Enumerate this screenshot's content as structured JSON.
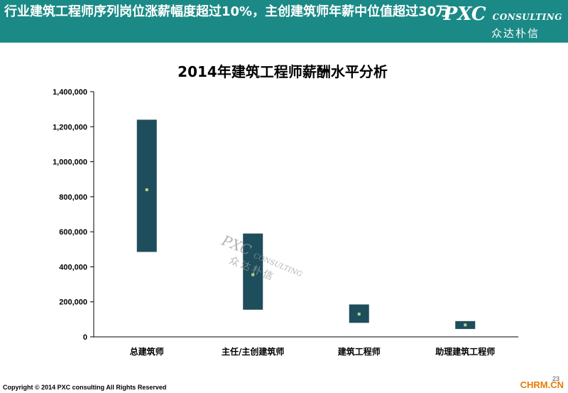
{
  "header": {
    "title": "行业建筑工程师序列岗位涨薪幅度超过10%，主创建筑师年薪中位值超过30万",
    "logo_main": "PXC",
    "logo_sub": "CONSULTING",
    "logo_cn": "众达朴信"
  },
  "watermark": {
    "main": "PXC",
    "sub": "CONSULTING",
    "cn": "众达朴信"
  },
  "footer": {
    "copyright": "Copyright © 2014  PXC consulting All Rights Reserved",
    "site": "CHRM.CN",
    "page": "23"
  },
  "colors": {
    "banner": "#1b8a86",
    "bar": "#1e4d5c",
    "median": "#b5d38a",
    "site": "#e87c00"
  },
  "chart_data": {
    "type": "range-bar",
    "title": "2014年建筑工程师薪酬水平分析",
    "xlabel": "",
    "ylabel": "",
    "ylim": [
      0,
      1400000
    ],
    "yticks": [
      0,
      200000,
      400000,
      600000,
      800000,
      1000000,
      1200000,
      1400000
    ],
    "ytick_labels": [
      "0",
      "200,000",
      "400,000",
      "600,000",
      "800,000",
      "1,000,000",
      "1,200,000",
      "1,400,000"
    ],
    "categories": [
      "总建筑师",
      "主任/主创建筑师",
      "建筑工程师",
      "助理建筑工程师"
    ],
    "series": [
      {
        "low": [
          485000,
          155000,
          80000,
          45000
        ]
      },
      {
        "high": [
          1240000,
          590000,
          185000,
          90000
        ]
      },
      {
        "median": [
          840000,
          355000,
          130000,
          68000
        ]
      }
    ],
    "grid": false,
    "legend": "none"
  }
}
